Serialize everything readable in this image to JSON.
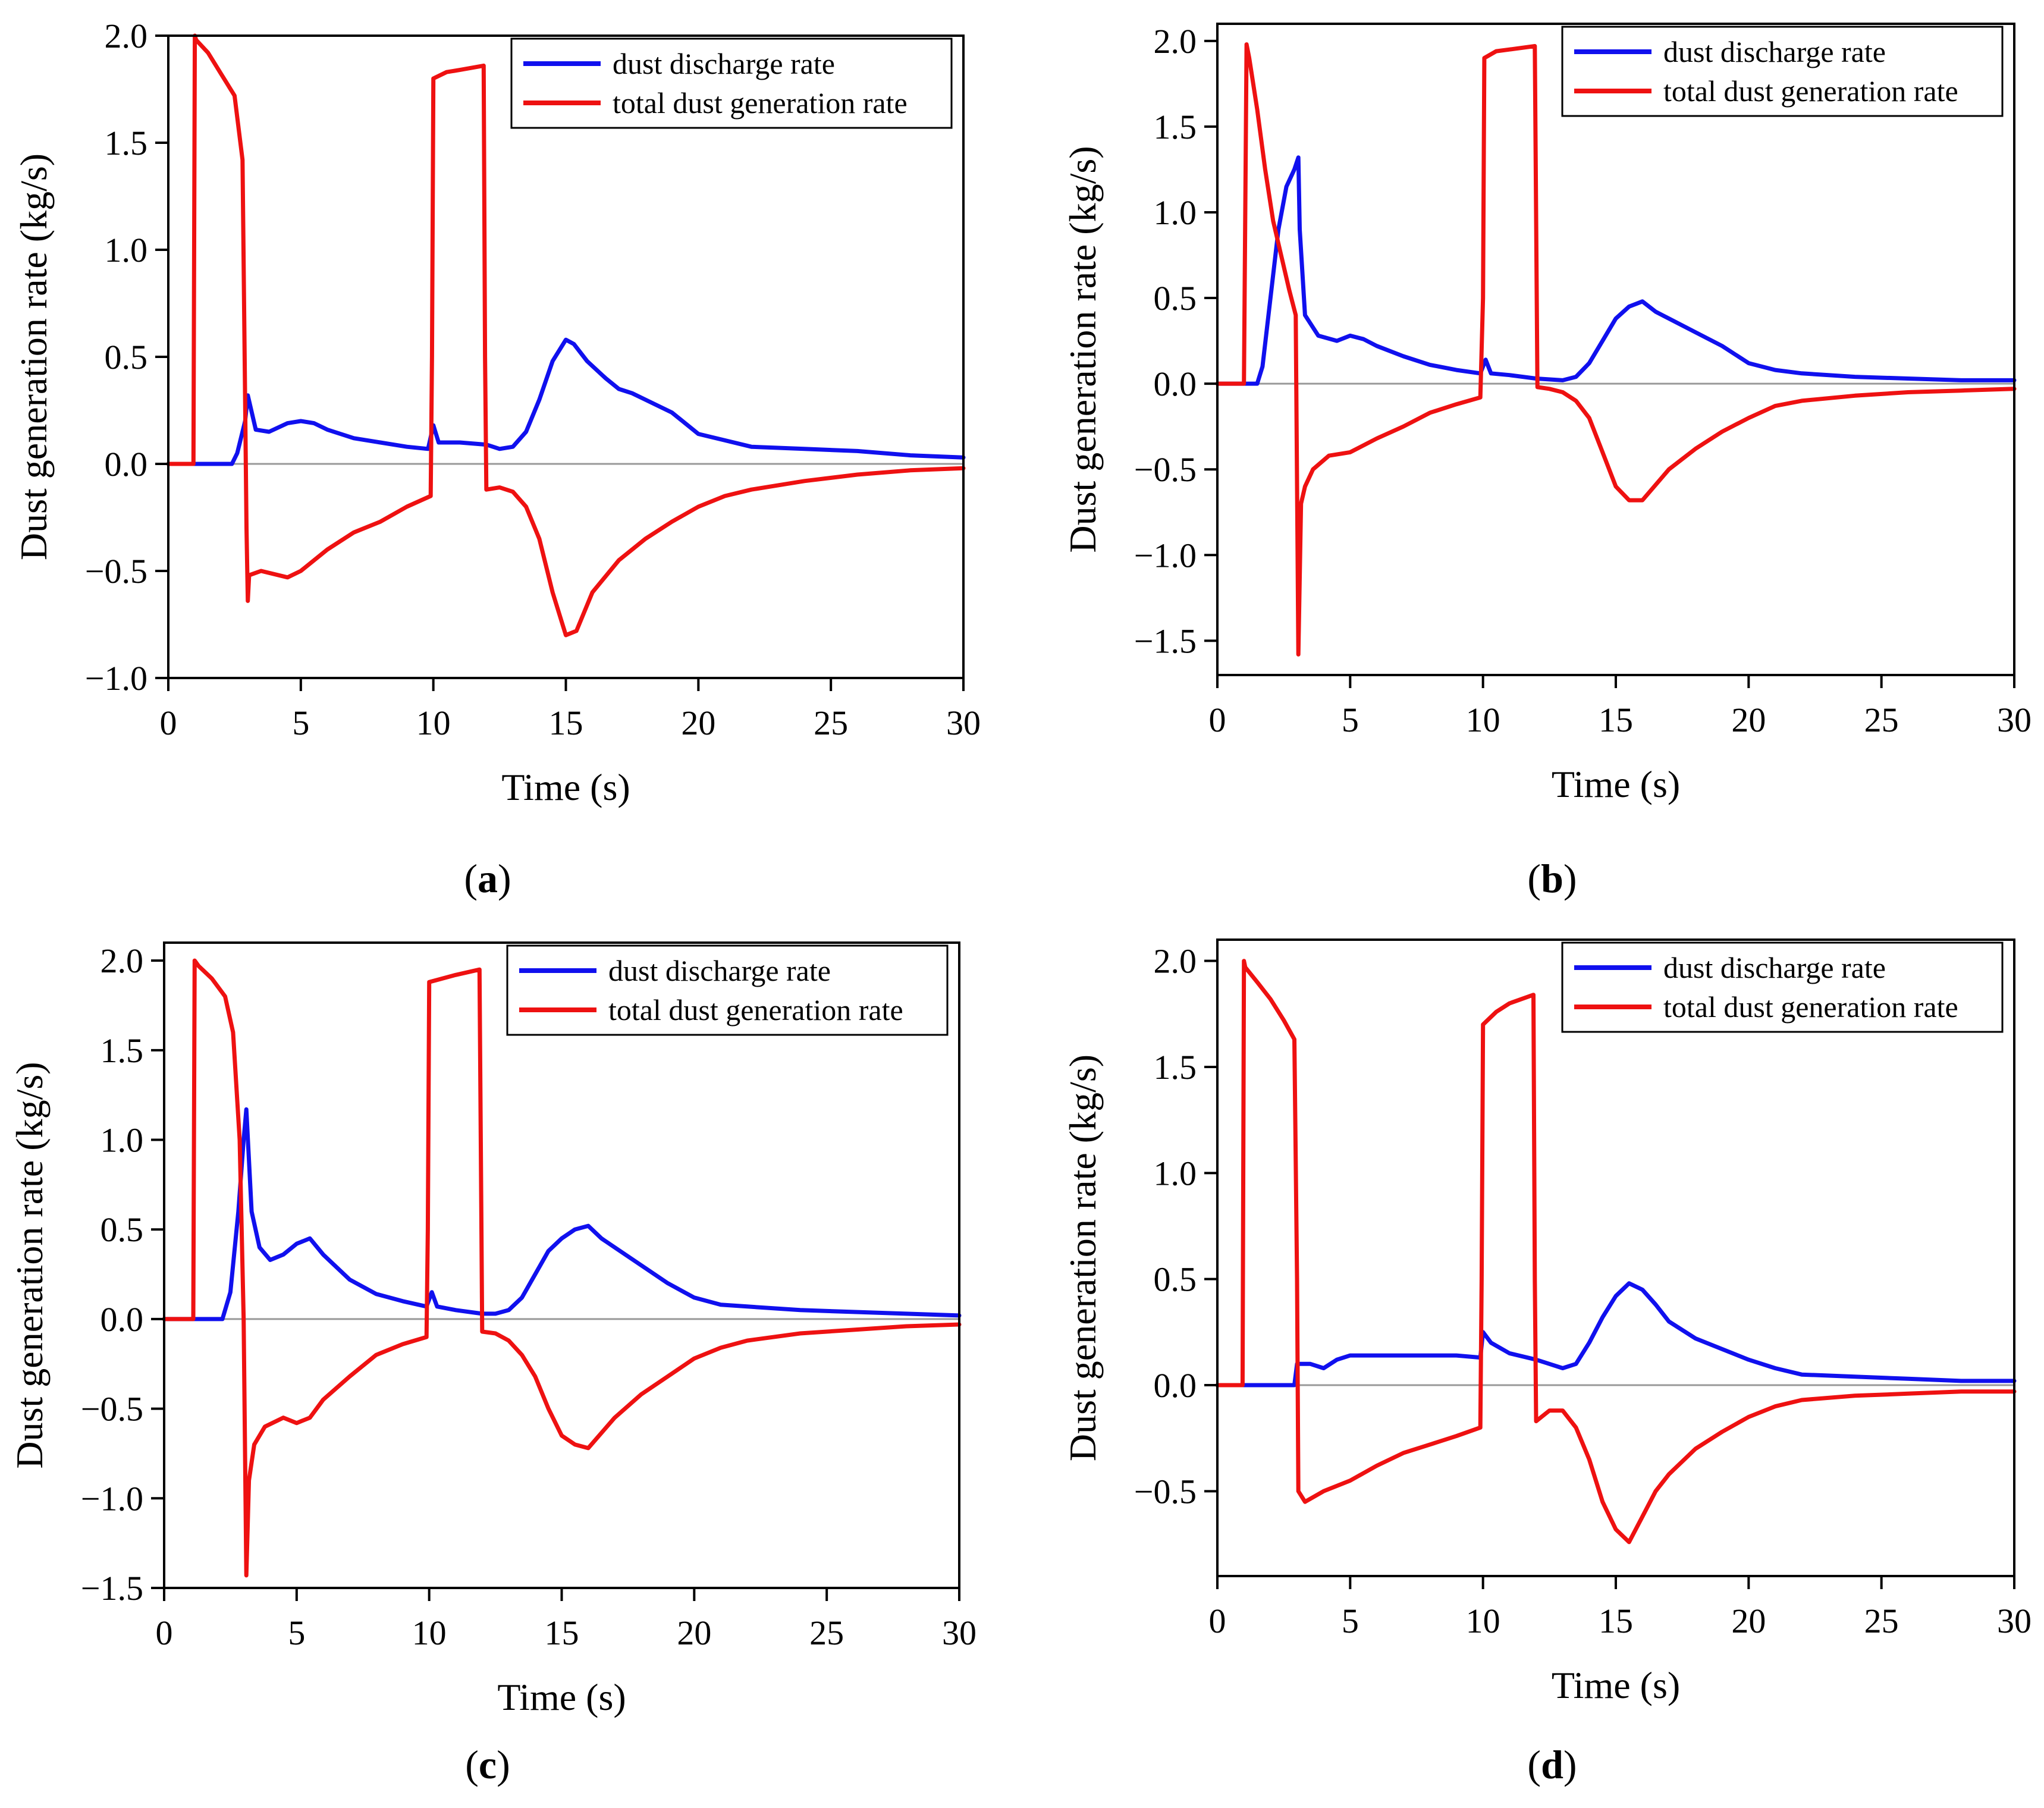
{
  "figure": {
    "panel_captions": [
      {
        "open": "(",
        "letter": "a",
        "close": ")"
      },
      {
        "open": "(",
        "letter": "b",
        "close": ")"
      },
      {
        "open": "(",
        "letter": "c",
        "close": ")"
      },
      {
        "open": "(",
        "letter": "d",
        "close": ")"
      }
    ]
  },
  "colors": {
    "discharge": "#1010ee",
    "generation": "#ee1111",
    "zero_line": "#999999",
    "axis": "#000000"
  },
  "chart_data": [
    {
      "type": "line",
      "panel": "a",
      "xlabel": "Time (s)",
      "ylabel": "Dust generation rate (kg/s)",
      "xlim": [
        0,
        30
      ],
      "ylim": [
        -1.0,
        2.0
      ],
      "xticks": [
        0,
        5,
        10,
        15,
        20,
        25,
        30
      ],
      "yticks": [
        -1.0,
        -0.5,
        0.0,
        0.5,
        1.0,
        1.5,
        2.0
      ],
      "ytick_labels": [
        "−1.0",
        "−0.5",
        "0.0",
        "0.5",
        "1.0",
        "1.5",
        "2.0"
      ],
      "legend_position": "top-right",
      "series": [
        {
          "name": "dust discharge rate",
          "color": "blue",
          "x": [
            0,
            2.4,
            2.6,
            2.9,
            3.0,
            3.3,
            3.8,
            4.5,
            5.0,
            5.5,
            6.0,
            7.0,
            8.0,
            9.0,
            9.8,
            10.0,
            10.2,
            11.0,
            12.0,
            12.5,
            13.0,
            13.5,
            14.0,
            14.5,
            15.0,
            15.3,
            15.8,
            16.5,
            17.0,
            17.5,
            18.0,
            19.0,
            20.0,
            21.0,
            22.0,
            24.0,
            26.0,
            28.0,
            30.0
          ],
          "y": [
            0.0,
            0.0,
            0.05,
            0.2,
            0.32,
            0.16,
            0.15,
            0.19,
            0.2,
            0.19,
            0.16,
            0.12,
            0.1,
            0.08,
            0.07,
            0.18,
            0.1,
            0.1,
            0.09,
            0.07,
            0.08,
            0.15,
            0.3,
            0.48,
            0.58,
            0.56,
            0.48,
            0.4,
            0.35,
            0.33,
            0.3,
            0.24,
            0.14,
            0.11,
            0.08,
            0.07,
            0.06,
            0.04,
            0.03
          ]
        },
        {
          "name": "total dust generation rate",
          "color": "red",
          "x": [
            0,
            0.95,
            1.0,
            1.05,
            1.5,
            2.0,
            2.5,
            2.8,
            2.95,
            3.0,
            3.05,
            3.5,
            4.5,
            5.0,
            6.0,
            7.0,
            8.0,
            9.0,
            9.9,
            9.95,
            10.0,
            10.5,
            11.0,
            11.9,
            11.95,
            12.0,
            12.5,
            13.0,
            13.5,
            14.0,
            14.5,
            15.0,
            15.4,
            16.0,
            17.0,
            18.0,
            19.0,
            20.0,
            21.0,
            22.0,
            24.0,
            26.0,
            28.0,
            30.0
          ],
          "y": [
            0.0,
            0.0,
            2.0,
            1.98,
            1.92,
            1.82,
            1.72,
            1.42,
            -0.3,
            -0.64,
            -0.52,
            -0.5,
            -0.53,
            -0.5,
            -0.4,
            -0.32,
            -0.27,
            -0.2,
            -0.15,
            0.5,
            1.8,
            1.83,
            1.84,
            1.86,
            0.5,
            -0.12,
            -0.11,
            -0.13,
            -0.2,
            -0.35,
            -0.6,
            -0.8,
            -0.78,
            -0.6,
            -0.45,
            -0.35,
            -0.27,
            -0.2,
            -0.15,
            -0.12,
            -0.08,
            -0.05,
            -0.03,
            -0.02
          ]
        }
      ]
    },
    {
      "type": "line",
      "panel": "b",
      "xlabel": "Time (s)",
      "ylabel": "Dust generation rate (kg/s)",
      "xlim": [
        0,
        30
      ],
      "ylim": [
        -1.7,
        2.1
      ],
      "xticks": [
        0,
        5,
        10,
        15,
        20,
        25,
        30
      ],
      "yticks": [
        -1.5,
        -1.0,
        -0.5,
        0.0,
        0.5,
        1.0,
        1.5,
        2.0
      ],
      "ytick_labels": [
        "−1.5",
        "−1.0",
        "−0.5",
        "0.0",
        "0.5",
        "1.0",
        "1.5",
        "2.0"
      ],
      "legend_position": "top-right",
      "series": [
        {
          "name": "dust discharge rate",
          "color": "blue",
          "x": [
            0,
            1.5,
            1.7,
            2.0,
            2.3,
            2.6,
            2.9,
            3.05,
            3.1,
            3.3,
            3.8,
            4.5,
            5.0,
            5.5,
            6.0,
            7.0,
            8.0,
            9.0,
            9.9,
            10.1,
            10.3,
            11.0,
            12.0,
            13.0,
            13.5,
            14.0,
            14.5,
            15.0,
            15.5,
            16.0,
            16.5,
            17.0,
            18.0,
            19.0,
            20.0,
            21.0,
            22.0,
            24.0,
            26.0,
            28.0,
            30.0
          ],
          "y": [
            0.0,
            0.0,
            0.1,
            0.5,
            0.9,
            1.15,
            1.25,
            1.32,
            0.9,
            0.4,
            0.28,
            0.25,
            0.28,
            0.26,
            0.22,
            0.16,
            0.11,
            0.08,
            0.06,
            0.14,
            0.06,
            0.05,
            0.03,
            0.02,
            0.04,
            0.12,
            0.25,
            0.38,
            0.45,
            0.48,
            0.42,
            0.38,
            0.3,
            0.22,
            0.12,
            0.08,
            0.06,
            0.04,
            0.03,
            0.02,
            0.02
          ]
        },
        {
          "name": "total dust generation rate",
          "color": "red",
          "x": [
            0,
            1.0,
            1.1,
            1.2,
            1.5,
            1.8,
            2.1,
            2.4,
            2.7,
            2.95,
            3.05,
            3.15,
            3.3,
            3.6,
            4.2,
            5.0,
            6.0,
            7.0,
            8.0,
            9.0,
            9.9,
            10.0,
            10.05,
            10.5,
            11.0,
            11.95,
            12.05,
            12.5,
            13.0,
            13.5,
            14.0,
            14.5,
            15.0,
            15.5,
            16.0,
            17.0,
            18.0,
            19.0,
            20.0,
            21.0,
            22.0,
            24.0,
            26.0,
            28.0,
            30.0
          ],
          "y": [
            0.0,
            0.0,
            1.98,
            1.9,
            1.6,
            1.25,
            0.95,
            0.75,
            0.55,
            0.4,
            -1.58,
            -0.7,
            -0.6,
            -0.5,
            -0.42,
            -0.4,
            -0.32,
            -0.25,
            -0.17,
            -0.12,
            -0.08,
            0.5,
            1.9,
            1.94,
            1.95,
            1.97,
            -0.02,
            -0.03,
            -0.05,
            -0.1,
            -0.2,
            -0.4,
            -0.6,
            -0.68,
            -0.68,
            -0.5,
            -0.38,
            -0.28,
            -0.2,
            -0.13,
            -0.1,
            -0.07,
            -0.05,
            -0.04,
            -0.03
          ]
        }
      ]
    },
    {
      "type": "line",
      "panel": "c",
      "xlabel": "Time (s)",
      "ylabel": "Dust generation rate (kg/s)",
      "xlim": [
        0,
        30
      ],
      "ylim": [
        -1.5,
        2.1
      ],
      "xticks": [
        0,
        5,
        10,
        15,
        20,
        25,
        30
      ],
      "yticks": [
        -1.5,
        -1.0,
        -0.5,
        0.0,
        0.5,
        1.0,
        1.5,
        2.0
      ],
      "ytick_labels": [
        "−1.5",
        "−1.0",
        "−0.5",
        "0.0",
        "0.5",
        "1.0",
        "1.5",
        "2.0"
      ],
      "legend_position": "top-right",
      "series": [
        {
          "name": "dust discharge rate",
          "color": "blue",
          "x": [
            0,
            2.2,
            2.5,
            2.8,
            3.0,
            3.1,
            3.3,
            3.6,
            4.0,
            4.5,
            5.0,
            5.5,
            6.0,
            7.0,
            8.0,
            9.0,
            9.9,
            10.1,
            10.3,
            11.0,
            12.0,
            12.5,
            13.0,
            13.5,
            14.0,
            14.5,
            15.0,
            15.5,
            16.0,
            16.5,
            17.0,
            18.0,
            19.0,
            20.0,
            21.0,
            22.0,
            24.0,
            26.0,
            28.0,
            30.0
          ],
          "y": [
            0.0,
            0.0,
            0.15,
            0.6,
            1.0,
            1.17,
            0.6,
            0.4,
            0.33,
            0.36,
            0.42,
            0.45,
            0.36,
            0.22,
            0.14,
            0.1,
            0.07,
            0.15,
            0.07,
            0.05,
            0.03,
            0.03,
            0.05,
            0.12,
            0.25,
            0.38,
            0.45,
            0.5,
            0.52,
            0.45,
            0.4,
            0.3,
            0.2,
            0.12,
            0.08,
            0.07,
            0.05,
            0.04,
            0.03,
            0.02
          ]
        },
        {
          "name": "total dust generation rate",
          "color": "red",
          "x": [
            0,
            1.1,
            1.15,
            1.3,
            1.8,
            2.3,
            2.6,
            2.85,
            3.0,
            3.1,
            3.2,
            3.4,
            3.8,
            4.5,
            5.0,
            5.5,
            6.0,
            7.0,
            8.0,
            9.0,
            9.9,
            9.95,
            10.0,
            10.5,
            11.0,
            11.9,
            12.0,
            12.5,
            13.0,
            13.5,
            14.0,
            14.5,
            15.0,
            15.5,
            16.0,
            17.0,
            18.0,
            19.0,
            20.0,
            21.0,
            22.0,
            24.0,
            26.0,
            28.0,
            30.0
          ],
          "y": [
            0.0,
            0.0,
            2.0,
            1.97,
            1.9,
            1.8,
            1.6,
            1.0,
            0.0,
            -1.43,
            -0.9,
            -0.7,
            -0.6,
            -0.55,
            -0.58,
            -0.55,
            -0.45,
            -0.32,
            -0.2,
            -0.14,
            -0.1,
            0.5,
            1.88,
            1.9,
            1.92,
            1.95,
            -0.07,
            -0.08,
            -0.12,
            -0.2,
            -0.32,
            -0.5,
            -0.65,
            -0.7,
            -0.72,
            -0.55,
            -0.42,
            -0.32,
            -0.22,
            -0.16,
            -0.12,
            -0.08,
            -0.06,
            -0.04,
            -0.03
          ]
        }
      ]
    },
    {
      "type": "line",
      "panel": "d",
      "xlabel": "Time (s)",
      "ylabel": "Dust generation rate (kg/s)",
      "xlim": [
        0,
        30
      ],
      "ylim": [
        -0.9,
        2.1
      ],
      "xticks": [
        0,
        5,
        10,
        15,
        20,
        25,
        30
      ],
      "yticks": [
        -0.5,
        0.0,
        0.5,
        1.0,
        1.5,
        2.0
      ],
      "ytick_labels": [
        "−0.5",
        "0.0",
        "0.5",
        "1.0",
        "1.5",
        "2.0"
      ],
      "legend_position": "top-right",
      "series": [
        {
          "name": "dust discharge rate",
          "color": "blue",
          "x": [
            0,
            2.9,
            3.0,
            3.5,
            4.0,
            4.5,
            5.0,
            6.0,
            7.0,
            8.0,
            9.0,
            9.9,
            10.0,
            10.3,
            11.0,
            12.0,
            12.5,
            13.0,
            13.5,
            14.0,
            14.5,
            15.0,
            15.5,
            16.0,
            16.5,
            17.0,
            18.0,
            19.0,
            20.0,
            21.0,
            22.0,
            24.0,
            26.0,
            28.0,
            30.0
          ],
          "y": [
            0.0,
            0.0,
            0.1,
            0.1,
            0.08,
            0.12,
            0.14,
            0.14,
            0.14,
            0.14,
            0.14,
            0.13,
            0.25,
            0.2,
            0.15,
            0.12,
            0.1,
            0.08,
            0.1,
            0.2,
            0.32,
            0.42,
            0.48,
            0.45,
            0.38,
            0.3,
            0.22,
            0.17,
            0.12,
            0.08,
            0.05,
            0.04,
            0.03,
            0.02,
            0.02
          ]
        },
        {
          "name": "total dust generation rate",
          "color": "red",
          "x": [
            0,
            0.95,
            1.0,
            1.05,
            1.5,
            2.0,
            2.5,
            2.9,
            3.0,
            3.05,
            3.3,
            4.0,
            5.0,
            6.0,
            7.0,
            8.0,
            9.0,
            9.9,
            9.95,
            10.0,
            10.5,
            11.0,
            11.9,
            11.95,
            12.0,
            12.5,
            13.0,
            13.5,
            14.0,
            14.5,
            15.0,
            15.5,
            16.0,
            16.5,
            17.0,
            18.0,
            19.0,
            20.0,
            21.0,
            22.0,
            24.0,
            26.0,
            28.0,
            30.0
          ],
          "y": [
            0.0,
            0.0,
            2.0,
            1.97,
            1.9,
            1.82,
            1.72,
            1.63,
            0.5,
            -0.5,
            -0.55,
            -0.5,
            -0.45,
            -0.38,
            -0.32,
            -0.28,
            -0.24,
            -0.2,
            0.5,
            1.7,
            1.76,
            1.8,
            1.84,
            0.5,
            -0.17,
            -0.12,
            -0.12,
            -0.2,
            -0.35,
            -0.55,
            -0.68,
            -0.74,
            -0.62,
            -0.5,
            -0.42,
            -0.3,
            -0.22,
            -0.15,
            -0.1,
            -0.07,
            -0.05,
            -0.04,
            -0.03,
            -0.03
          ]
        }
      ]
    }
  ]
}
